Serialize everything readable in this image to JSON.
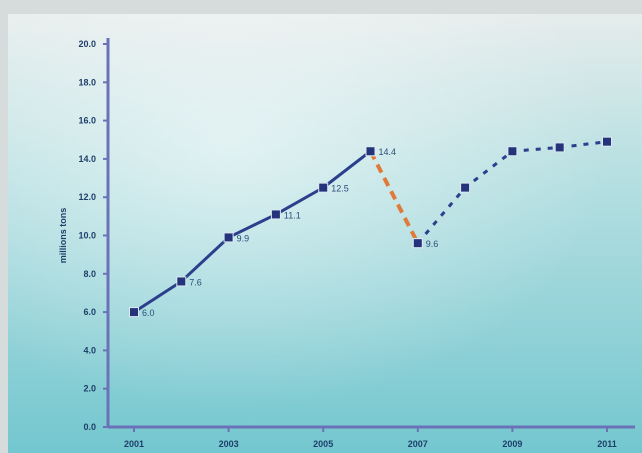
{
  "chart_data": {
    "type": "line",
    "title": "",
    "xlabel": "",
    "ylabel": "millions tons",
    "yticks": [
      "0.0",
      "2.0",
      "4.0",
      "6.0",
      "8.0",
      "10.0",
      "12.0",
      "14.0",
      "16.0",
      "18.0",
      "20.0"
    ],
    "xticks": [
      "2001",
      "2003",
      "2005",
      "2007",
      "2009",
      "2011"
    ],
    "ylim": [
      0,
      20
    ],
    "xlim": [
      2001,
      2011
    ],
    "grid": false,
    "legend": "none",
    "series": [
      {
        "style": "solid",
        "color": "#2b3f8c",
        "points": [
          {
            "x": 2001,
            "y": 6.0,
            "label": "6.0"
          },
          {
            "x": 2002,
            "y": 7.6,
            "label": "7.6"
          },
          {
            "x": 2003,
            "y": 9.9,
            "label": "9.9"
          },
          {
            "x": 2004,
            "y": 11.1,
            "label": "11.1"
          },
          {
            "x": 2005,
            "y": 12.5,
            "label": "12.5"
          },
          {
            "x": 2006,
            "y": 14.4,
            "label": "14.4"
          }
        ]
      },
      {
        "style": "dashed",
        "color": "#e07a3a",
        "points": [
          {
            "x": 2006,
            "y": 14.4
          },
          {
            "x": 2007,
            "y": 9.6,
            "label": "9.6"
          }
        ]
      },
      {
        "style": "dotted",
        "color": "#2b3f8c",
        "points": [
          {
            "x": 2007,
            "y": 9.6
          },
          {
            "x": 2008,
            "y": 12.5
          },
          {
            "x": 2009,
            "y": 14.4
          },
          {
            "x": 2010,
            "y": 14.6
          },
          {
            "x": 2011,
            "y": 14.9
          }
        ]
      }
    ]
  },
  "colors": {
    "background_top": "#e6ecec",
    "background_mid": "#9fd6da",
    "background_bottom": "#6cc6cf",
    "axis": "#6b73b8"
  }
}
